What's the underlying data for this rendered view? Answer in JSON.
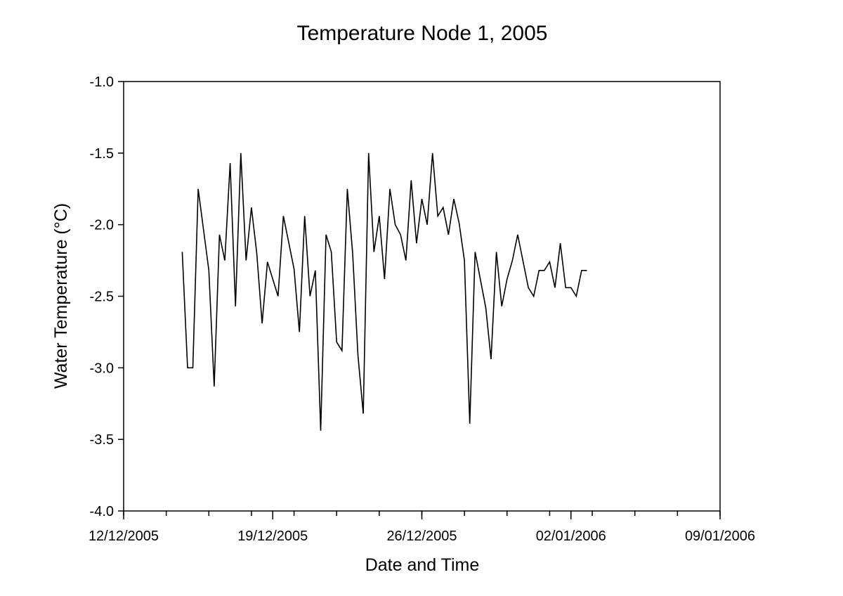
{
  "chart_data": {
    "type": "line",
    "title": "Temperature Node 1, 2005",
    "xlabel": "Date and Time",
    "ylabel": "Water Temperature (°C)",
    "x_units": "days since 12/12/2005",
    "xlim": [
      0,
      28
    ],
    "ylim": [
      -4.0,
      -1.0
    ],
    "x_major_ticks": [
      {
        "value": 0,
        "label": "12/12/2005"
      },
      {
        "value": 7,
        "label": "19/12/2005"
      },
      {
        "value": 14,
        "label": "26/12/2005"
      },
      {
        "value": 21,
        "label": "02/01/2006"
      },
      {
        "value": 28,
        "label": "09/01/2006"
      }
    ],
    "x_minor_tick_step": 2,
    "y_ticks": [
      {
        "value": -1.0,
        "label": "-1.0"
      },
      {
        "value": -1.5,
        "label": "-1.5"
      },
      {
        "value": -2.0,
        "label": "-2.0"
      },
      {
        "value": -2.5,
        "label": "-2.5"
      },
      {
        "value": -3.0,
        "label": "-3.0"
      },
      {
        "value": -3.5,
        "label": "-3.5"
      },
      {
        "value": -4.0,
        "label": "-4.0"
      }
    ],
    "grid": false,
    "series": [
      {
        "name": "Node 1",
        "color": "#000000",
        "x": [
          2.75,
          3,
          3.25,
          3.5,
          4,
          4.25,
          4.5,
          4.75,
          5,
          5.25,
          5.5,
          5.75,
          6,
          6.25,
          6.5,
          6.75,
          7.25,
          7.5,
          8,
          8.25,
          8.5,
          8.75,
          9,
          9.25,
          9.5,
          9.75,
          10,
          10.25,
          10.5,
          10.75,
          11,
          11.25,
          11.5,
          11.75,
          12,
          12.25,
          12.5,
          12.75,
          13,
          13.25,
          13.5,
          13.75,
          14,
          14.25,
          14.5,
          14.75,
          15,
          15.25,
          15.5,
          15.75,
          16,
          16.25,
          16.5,
          17,
          17.25,
          17.5,
          17.75,
          18,
          18.25,
          18.5,
          19,
          19.25,
          19.5,
          19.75,
          20,
          20.25,
          20.5,
          20.75,
          21,
          21.25,
          21.5,
          21.75
        ],
        "y": [
          -2.19,
          -3.0,
          -3.0,
          -1.75,
          -2.32,
          -3.13,
          -2.07,
          -2.25,
          -1.57,
          -2.57,
          -1.5,
          -2.25,
          -1.88,
          -2.2,
          -2.69,
          -2.26,
          -2.5,
          -1.94,
          -2.31,
          -2.75,
          -1.94,
          -2.5,
          -2.32,
          -3.44,
          -2.07,
          -2.19,
          -2.82,
          -2.88,
          -1.75,
          -2.2,
          -2.91,
          -3.32,
          -1.5,
          -2.19,
          -1.94,
          -2.38,
          -1.75,
          -2.0,
          -2.07,
          -2.25,
          -1.69,
          -2.13,
          -1.82,
          -2.0,
          -1.5,
          -1.94,
          -1.88,
          -2.07,
          -1.82,
          -1.99,
          -2.25,
          -3.39,
          -2.19,
          -2.58,
          -2.94,
          -2.19,
          -2.57,
          -2.38,
          -2.25,
          -2.07,
          -2.44,
          -2.5,
          -2.32,
          -2.32,
          -2.26,
          -2.44,
          -2.13,
          -2.44,
          -2.44,
          -2.5,
          -2.32,
          -2.32
        ]
      }
    ]
  }
}
